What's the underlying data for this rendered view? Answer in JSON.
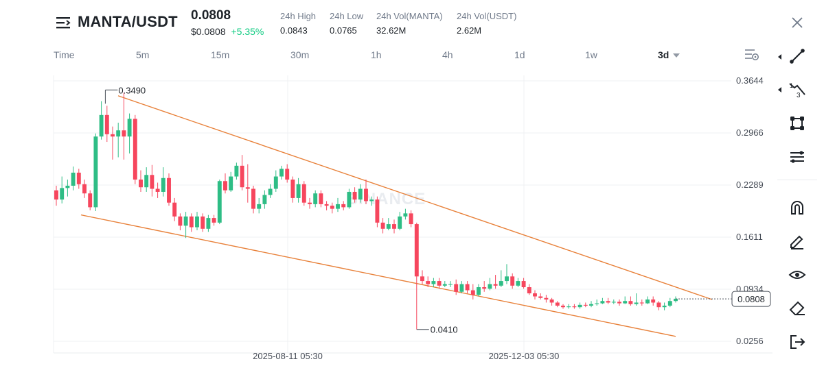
{
  "header": {
    "pair": "MANTA/USDT",
    "price": "0.0808",
    "price_usd": "$0.0808",
    "change": "+5.35%",
    "stats": [
      {
        "label": "24h High",
        "value": "0.0843"
      },
      {
        "label": "24h Low",
        "value": "0.0765"
      },
      {
        "label": "24h Vol(MANTA)",
        "value": "32.62M"
      },
      {
        "label": "24h Vol(USDT)",
        "value": "2.62M"
      }
    ]
  },
  "timeframes": [
    {
      "label": "Time"
    },
    {
      "label": "5m"
    },
    {
      "label": "15m"
    },
    {
      "label": "30m"
    },
    {
      "label": "1h"
    },
    {
      "label": "4h"
    },
    {
      "label": "1d"
    },
    {
      "label": "1w"
    },
    {
      "label": "3d"
    }
  ],
  "active_timeframe": "3d",
  "watermark": "BINANCE",
  "colors": {
    "up": "#2ebd85",
    "down": "#f6465d",
    "trendline": "#e8813a",
    "accent_green": "#0ecb81"
  },
  "icons": {
    "menu": "menu-icon",
    "close": "close-icon",
    "settings": "chart-settings-icon",
    "tools": [
      "trendline-icon",
      "fib-icon",
      "shape-icon",
      "parallel-lines-icon",
      "magnet-icon",
      "pencil-icon",
      "eye-icon",
      "eraser-icon",
      "exit-icon"
    ]
  },
  "chart_data": {
    "type": "candlestick",
    "y_ticks": [
      "0.3644",
      "0.2966",
      "0.2289",
      "0.1611",
      "0.0934",
      "0.0256"
    ],
    "x_ticks": [
      "2025-08-11 05:30",
      "2025-12-03 05:30"
    ],
    "ylim": [
      0.0256,
      0.3644
    ],
    "current_price_label": "0.0808",
    "annotations": {
      "high": "0.3490",
      "low": "0.0410"
    },
    "candles": [
      [
        0.222,
        0.21,
        0.228,
        0.202
      ],
      [
        0.21,
        0.225,
        0.24,
        0.205
      ],
      [
        0.225,
        0.228,
        0.236,
        0.214
      ],
      [
        0.228,
        0.245,
        0.253,
        0.222
      ],
      [
        0.245,
        0.23,
        0.25,
        0.224
      ],
      [
        0.23,
        0.218,
        0.236,
        0.212
      ],
      [
        0.218,
        0.2,
        0.222,
        0.196
      ],
      [
        0.2,
        0.292,
        0.296,
        0.195
      ],
      [
        0.292,
        0.32,
        0.338,
        0.288
      ],
      [
        0.32,
        0.295,
        0.332,
        0.285
      ],
      [
        0.295,
        0.292,
        0.305,
        0.262
      ],
      [
        0.292,
        0.3,
        0.31,
        0.265
      ],
      [
        0.3,
        0.292,
        0.349,
        0.262
      ],
      [
        0.292,
        0.315,
        0.322,
        0.27
      ],
      [
        0.315,
        0.236,
        0.32,
        0.23
      ],
      [
        0.236,
        0.226,
        0.248,
        0.22
      ],
      [
        0.226,
        0.242,
        0.252,
        0.22
      ],
      [
        0.242,
        0.224,
        0.255,
        0.214
      ],
      [
        0.224,
        0.22,
        0.232,
        0.212
      ],
      [
        0.22,
        0.238,
        0.252,
        0.214
      ],
      [
        0.238,
        0.206,
        0.244,
        0.202
      ],
      [
        0.206,
        0.188,
        0.212,
        0.182
      ],
      [
        0.188,
        0.176,
        0.192,
        0.17
      ],
      [
        0.176,
        0.188,
        0.194,
        0.16
      ],
      [
        0.188,
        0.174,
        0.192,
        0.168
      ],
      [
        0.174,
        0.188,
        0.194,
        0.17
      ],
      [
        0.188,
        0.172,
        0.192,
        0.168
      ],
      [
        0.172,
        0.186,
        0.19,
        0.168
      ],
      [
        0.186,
        0.18,
        0.19,
        0.176
      ],
      [
        0.18,
        0.234,
        0.236,
        0.178
      ],
      [
        0.234,
        0.222,
        0.244,
        0.218
      ],
      [
        0.222,
        0.24,
        0.246,
        0.22
      ],
      [
        0.24,
        0.254,
        0.258,
        0.236
      ],
      [
        0.254,
        0.226,
        0.268,
        0.222
      ],
      [
        0.226,
        0.224,
        0.256,
        0.206
      ],
      [
        0.224,
        0.198,
        0.228,
        0.192
      ],
      [
        0.198,
        0.204,
        0.212,
        0.192
      ],
      [
        0.204,
        0.216,
        0.222,
        0.198
      ],
      [
        0.216,
        0.224,
        0.23,
        0.212
      ],
      [
        0.224,
        0.24,
        0.248,
        0.22
      ],
      [
        0.24,
        0.25,
        0.254,
        0.236
      ],
      [
        0.25,
        0.236,
        0.256,
        0.232
      ],
      [
        0.236,
        0.212,
        0.24,
        0.206
      ],
      [
        0.212,
        0.23,
        0.238,
        0.206
      ],
      [
        0.23,
        0.206,
        0.234,
        0.202
      ],
      [
        0.206,
        0.204,
        0.212,
        0.198
      ],
      [
        0.204,
        0.218,
        0.222,
        0.2
      ],
      [
        0.218,
        0.204,
        0.222,
        0.2
      ],
      [
        0.204,
        0.202,
        0.208,
        0.196
      ],
      [
        0.202,
        0.198,
        0.206,
        0.192
      ],
      [
        0.198,
        0.204,
        0.212,
        0.194
      ],
      [
        0.204,
        0.2,
        0.208,
        0.196
      ],
      [
        0.2,
        0.22,
        0.224,
        0.198
      ],
      [
        0.22,
        0.21,
        0.226,
        0.206
      ],
      [
        0.21,
        0.224,
        0.23,
        0.206
      ],
      [
        0.224,
        0.208,
        0.236,
        0.204
      ],
      [
        0.208,
        0.21,
        0.214,
        0.202
      ],
      [
        0.21,
        0.18,
        0.214,
        0.174
      ],
      [
        0.18,
        0.172,
        0.186,
        0.166
      ],
      [
        0.172,
        0.178,
        0.186,
        0.17
      ],
      [
        0.178,
        0.172,
        0.184,
        0.166
      ],
      [
        0.172,
        0.188,
        0.194,
        0.17
      ],
      [
        0.188,
        0.192,
        0.198,
        0.184
      ],
      [
        0.192,
        0.178,
        0.196,
        0.174
      ],
      [
        0.178,
        0.11,
        0.18,
        0.041
      ],
      [
        0.11,
        0.104,
        0.118,
        0.1
      ],
      [
        0.104,
        0.1,
        0.11,
        0.096
      ],
      [
        0.1,
        0.104,
        0.108,
        0.096
      ],
      [
        0.104,
        0.098,
        0.108,
        0.094
      ],
      [
        0.098,
        0.1,
        0.104,
        0.096
      ],
      [
        0.1,
        0.1,
        0.104,
        0.096
      ],
      [
        0.1,
        0.09,
        0.106,
        0.086
      ],
      [
        0.09,
        0.1,
        0.104,
        0.088
      ],
      [
        0.1,
        0.092,
        0.104,
        0.088
      ],
      [
        0.092,
        0.086,
        0.1,
        0.08
      ],
      [
        0.086,
        0.096,
        0.1,
        0.084
      ],
      [
        0.096,
        0.094,
        0.104,
        0.09
      ],
      [
        0.094,
        0.1,
        0.108,
        0.092
      ],
      [
        0.1,
        0.098,
        0.112,
        0.094
      ],
      [
        0.098,
        0.104,
        0.118,
        0.096
      ],
      [
        0.104,
        0.11,
        0.126,
        0.1
      ],
      [
        0.11,
        0.098,
        0.114,
        0.094
      ],
      [
        0.098,
        0.104,
        0.108,
        0.096
      ],
      [
        0.104,
        0.096,
        0.108,
        0.094
      ],
      [
        0.096,
        0.088,
        0.1,
        0.086
      ],
      [
        0.088,
        0.084,
        0.092,
        0.08
      ],
      [
        0.084,
        0.082,
        0.088,
        0.08
      ],
      [
        0.082,
        0.08,
        0.086,
        0.076
      ],
      [
        0.08,
        0.076,
        0.082,
        0.072
      ],
      [
        0.076,
        0.072,
        0.078,
        0.07
      ],
      [
        0.072,
        0.07,
        0.074,
        0.068
      ],
      [
        0.07,
        0.071,
        0.074,
        0.068
      ],
      [
        0.071,
        0.07,
        0.074,
        0.068
      ],
      [
        0.07,
        0.073,
        0.076,
        0.068
      ],
      [
        0.073,
        0.072,
        0.076,
        0.07
      ],
      [
        0.072,
        0.074,
        0.078,
        0.07
      ],
      [
        0.074,
        0.075,
        0.08,
        0.072
      ],
      [
        0.075,
        0.078,
        0.082,
        0.074
      ],
      [
        0.078,
        0.076,
        0.082,
        0.074
      ],
      [
        0.076,
        0.077,
        0.08,
        0.074
      ],
      [
        0.077,
        0.075,
        0.08,
        0.072
      ],
      [
        0.075,
        0.078,
        0.084,
        0.074
      ],
      [
        0.078,
        0.074,
        0.084,
        0.072
      ],
      [
        0.074,
        0.076,
        0.088,
        0.072
      ],
      [
        0.076,
        0.075,
        0.08,
        0.072
      ],
      [
        0.075,
        0.08,
        0.084,
        0.074
      ],
      [
        0.08,
        0.076,
        0.084,
        0.072
      ],
      [
        0.076,
        0.07,
        0.078,
        0.066
      ],
      [
        0.07,
        0.072,
        0.076,
        0.066
      ],
      [
        0.072,
        0.078,
        0.082,
        0.07
      ],
      [
        0.078,
        0.081,
        0.084,
        0.076
      ]
    ],
    "trendlines": {
      "upper": [
        [
          0,
          0.345
        ],
        [
          1,
          0.08
        ]
      ],
      "lower": [
        [
          0,
          0.19
        ],
        [
          1,
          0.032
        ]
      ]
    }
  }
}
